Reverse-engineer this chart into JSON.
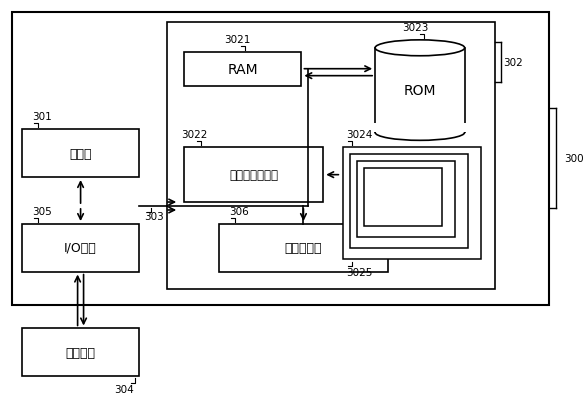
{
  "bg_color": "#ffffff",
  "line_color": "#000000",
  "fig_width": 5.84,
  "fig_height": 4.14,
  "labels": {
    "RAM": "RAM",
    "ROM": "ROM",
    "cache": "高速缓存存储器",
    "processor": "处理器",
    "io": "I/O接口",
    "network": "网络适配器",
    "external": "外部设备"
  },
  "refs": {
    "300": "300",
    "301": "301",
    "302": "302",
    "3021": "3021",
    "3022": "3022",
    "3023": "3023",
    "3024": "3024",
    "3025": "3025",
    "303": "303",
    "304": "304",
    "305": "305",
    "306": "306"
  }
}
